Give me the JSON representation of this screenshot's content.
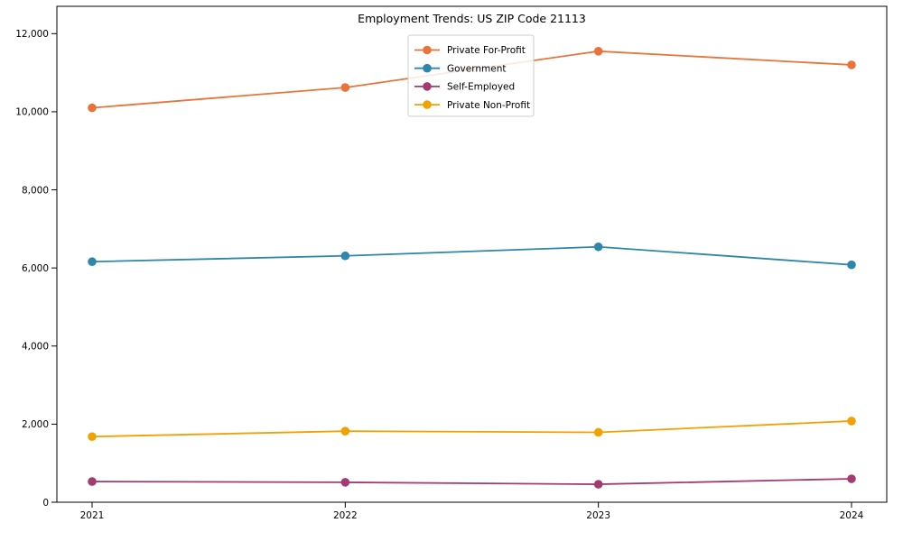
{
  "chart_data": {
    "type": "line",
    "title": "Employment Trends: US ZIP Code 21113",
    "xlabel": "",
    "ylabel": "",
    "x": [
      "2021",
      "2022",
      "2023",
      "2024"
    ],
    "series": [
      {
        "name": "Private For-Profit",
        "color": "#E8743B",
        "values": [
          10100,
          10620,
          11550,
          11200
        ]
      },
      {
        "name": "Government",
        "color": "#2E86AB",
        "values": [
          6160,
          6310,
          6540,
          6080
        ]
      },
      {
        "name": "Self-Employed",
        "color": "#A23B72",
        "values": [
          530,
          510,
          460,
          600
        ]
      },
      {
        "name": "Private Non-Profit",
        "color": "#F0A202",
        "values": [
          1680,
          1820,
          1790,
          2080
        ]
      }
    ],
    "ylim": [
      0,
      12700
    ],
    "yticks": [
      0,
      2000,
      4000,
      6000,
      8000,
      10000,
      12000
    ],
    "ytick_labels": [
      "0",
      "2,000",
      "4,000",
      "6,000",
      "8,000",
      "10,000",
      "12,000"
    ],
    "grid": false,
    "legend_position": "upper center",
    "legend_border_color": "#cccccc",
    "legend_background": "#ffffff",
    "axis_color": "#000000",
    "background_color": "#ffffff",
    "marker": "circle"
  }
}
